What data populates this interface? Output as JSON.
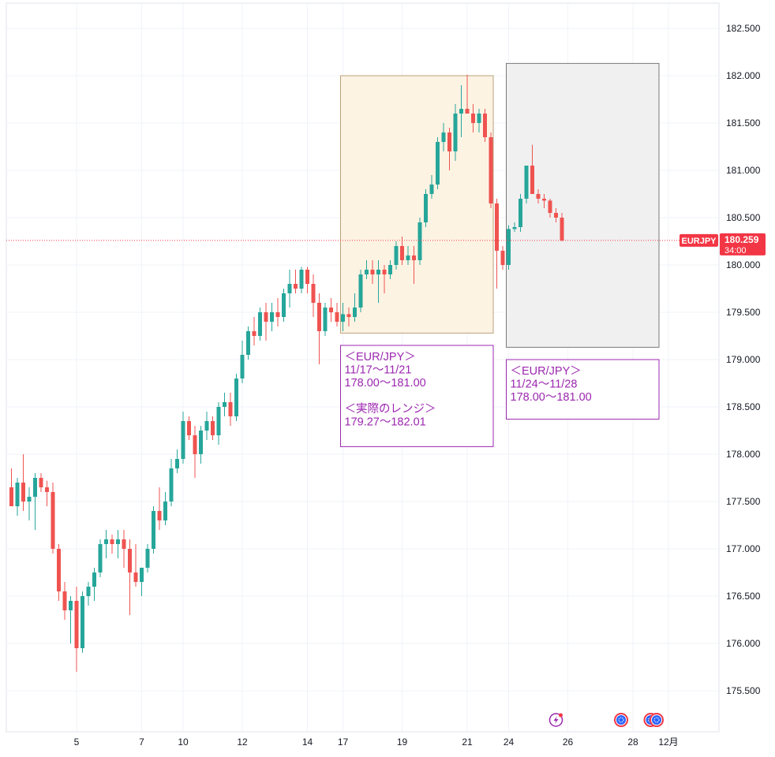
{
  "chart_data": {
    "type": "candlestick",
    "symbol": "EURJPY",
    "last_price": "180.259",
    "countdown": "34:00",
    "ylim": [
      175.2,
      182.7
    ],
    "y_ticks": [
      "175.500",
      "176.000",
      "176.500",
      "177.000",
      "177.500",
      "178.000",
      "178.500",
      "179.000",
      "179.500",
      "180.000",
      "180.500",
      "181.000",
      "181.500",
      "182.000",
      "182.500"
    ],
    "x_ticks": [
      {
        "label": "5",
        "index": 11
      },
      {
        "label": "7",
        "index": 22
      },
      {
        "label": "10",
        "index": 29
      },
      {
        "label": "12",
        "index": 39
      },
      {
        "label": "14",
        "index": 50
      },
      {
        "label": "17",
        "index": 56
      },
      {
        "label": "19",
        "index": 66
      },
      {
        "label": "21",
        "index": 77
      },
      {
        "label": "24",
        "index": 84
      },
      {
        "label": "26",
        "index": 94
      },
      {
        "label": "28",
        "index": 105
      },
      {
        "label": "12月",
        "index": 111
      }
    ],
    "candles": [
      [
        177.65,
        177.85,
        177.45,
        177.45
      ],
      [
        177.45,
        177.75,
        177.35,
        177.7
      ],
      [
        177.7,
        178.0,
        177.4,
        177.5
      ],
      [
        177.5,
        177.65,
        177.3,
        177.55
      ],
      [
        177.55,
        177.8,
        177.2,
        177.75
      ],
      [
        177.75,
        177.8,
        177.6,
        177.65
      ],
      [
        177.65,
        177.72,
        177.45,
        177.6
      ],
      [
        177.6,
        177.7,
        176.95,
        177.0
      ],
      [
        177.0,
        177.05,
        176.45,
        176.55
      ],
      [
        176.55,
        176.65,
        176.25,
        176.35
      ],
      [
        176.35,
        176.5,
        176.0,
        176.45
      ],
      [
        176.45,
        176.6,
        175.7,
        175.95
      ],
      [
        175.95,
        176.55,
        175.9,
        176.5
      ],
      [
        176.5,
        176.65,
        176.4,
        176.6
      ],
      [
        176.6,
        176.8,
        176.45,
        176.75
      ],
      [
        176.75,
        177.1,
        176.7,
        177.05
      ],
      [
        177.05,
        177.2,
        176.9,
        177.1
      ],
      [
        177.1,
        177.15,
        176.95,
        177.05
      ],
      [
        177.05,
        177.2,
        176.9,
        177.1
      ],
      [
        177.1,
        177.2,
        176.8,
        177.0
      ],
      [
        177.0,
        177.1,
        176.3,
        176.75
      ],
      [
        176.75,
        177.05,
        176.6,
        176.65
      ],
      [
        176.65,
        176.8,
        176.5,
        176.8
      ],
      [
        176.8,
        177.05,
        176.75,
        177.0
      ],
      [
        177.0,
        177.45,
        176.95,
        177.4
      ],
      [
        177.4,
        177.65,
        177.2,
        177.3
      ],
      [
        177.3,
        177.6,
        177.25,
        177.5
      ],
      [
        177.5,
        177.95,
        177.45,
        177.85
      ],
      [
        177.85,
        178.05,
        177.8,
        177.95
      ],
      [
        177.95,
        178.45,
        177.9,
        178.35
      ],
      [
        178.35,
        178.4,
        178.15,
        178.2
      ],
      [
        178.2,
        178.3,
        177.75,
        178.0
      ],
      [
        178.0,
        178.3,
        177.9,
        178.25
      ],
      [
        178.25,
        178.45,
        178.15,
        178.35
      ],
      [
        178.35,
        178.4,
        178.15,
        178.2
      ],
      [
        178.2,
        178.55,
        178.1,
        178.5
      ],
      [
        178.5,
        178.65,
        178.4,
        178.55
      ],
      [
        178.55,
        178.65,
        178.3,
        178.4
      ],
      [
        178.4,
        178.85,
        178.35,
        178.8
      ],
      [
        178.8,
        179.2,
        178.75,
        179.05
      ],
      [
        179.05,
        179.35,
        179.0,
        179.3
      ],
      [
        179.3,
        179.45,
        179.15,
        179.25
      ],
      [
        179.25,
        179.55,
        179.2,
        179.5
      ],
      [
        179.5,
        179.6,
        179.2,
        179.4
      ],
      [
        179.4,
        179.6,
        179.3,
        179.5
      ],
      [
        179.5,
        179.65,
        179.35,
        179.45
      ],
      [
        179.45,
        179.75,
        179.4,
        179.7
      ],
      [
        179.7,
        179.95,
        179.55,
        179.8
      ],
      [
        179.8,
        179.95,
        179.7,
        179.75
      ],
      [
        179.75,
        179.98,
        179.7,
        179.95
      ],
      [
        179.95,
        179.98,
        179.7,
        179.8
      ],
      [
        179.8,
        179.9,
        179.45,
        179.6
      ],
      [
        179.6,
        179.7,
        178.95,
        179.3
      ],
      [
        179.3,
        179.6,
        179.25,
        179.55
      ],
      [
        179.55,
        179.65,
        179.4,
        179.5
      ],
      [
        179.5,
        179.6,
        179.35,
        179.4
      ],
      [
        179.4,
        179.6,
        179.3,
        179.48
      ],
      [
        179.48,
        179.55,
        179.35,
        179.45
      ],
      [
        179.45,
        179.7,
        179.4,
        179.55
      ],
      [
        179.55,
        179.95,
        179.5,
        179.9
      ],
      [
        179.9,
        180.05,
        179.85,
        179.95
      ],
      [
        179.95,
        180.05,
        179.8,
        179.9
      ],
      [
        179.9,
        180.05,
        179.6,
        179.95
      ],
      [
        179.95,
        180.0,
        179.7,
        179.9
      ],
      [
        179.9,
        180.05,
        179.85,
        180.0
      ],
      [
        180.0,
        180.25,
        179.95,
        180.2
      ],
      [
        180.2,
        180.3,
        180.0,
        180.05
      ],
      [
        180.05,
        180.2,
        180.0,
        180.1
      ],
      [
        180.1,
        180.2,
        179.8,
        180.05
      ],
      [
        180.05,
        180.5,
        180.0,
        180.45
      ],
      [
        180.45,
        180.8,
        180.4,
        180.75
      ],
      [
        180.75,
        180.95,
        180.7,
        180.85
      ],
      [
        180.85,
        181.35,
        180.8,
        181.3
      ],
      [
        181.3,
        181.5,
        181.2,
        181.4
      ],
      [
        181.4,
        181.45,
        181.0,
        181.2
      ],
      [
        181.2,
        181.7,
        181.1,
        181.6
      ],
      [
        181.6,
        181.9,
        181.35,
        181.65
      ],
      [
        181.65,
        182.01,
        181.6,
        181.6
      ],
      [
        181.6,
        181.7,
        181.4,
        181.5
      ],
      [
        181.5,
        181.65,
        181.4,
        181.6
      ],
      [
        181.6,
        181.65,
        181.3,
        181.35
      ],
      [
        181.35,
        181.4,
        180.6,
        180.65
      ],
      [
        180.65,
        180.7,
        179.75,
        180.15
      ],
      [
        180.15,
        180.2,
        179.95,
        180.0
      ],
      [
        180.0,
        180.42,
        179.95,
        180.38
      ],
      [
        180.38,
        180.45,
        180.35,
        180.4
      ],
      [
        180.4,
        180.75,
        180.35,
        180.7
      ],
      [
        180.7,
        181.05,
        180.65,
        181.05
      ],
      [
        181.05,
        181.27,
        180.75,
        180.75
      ],
      [
        180.75,
        180.8,
        180.65,
        180.7
      ],
      [
        180.7,
        180.75,
        180.6,
        180.68
      ],
      [
        180.68,
        180.7,
        180.5,
        180.55
      ],
      [
        180.55,
        180.6,
        180.45,
        180.5
      ],
      [
        180.5,
        180.55,
        180.25,
        180.26
      ]
    ],
    "boxes": [
      {
        "start_index": 56,
        "end_index": 81,
        "top": 182.0,
        "bottom": 179.28,
        "fill": "#fdf3e3",
        "stroke": "#b8a17c"
      },
      {
        "start_index": 84,
        "end_index": 109,
        "top": 182.13,
        "bottom": 179.13,
        "fill": "#f0f0f0",
        "stroke": "#7a7a7a"
      }
    ],
    "annotations": [
      {
        "start_index": 56,
        "end_index": 81,
        "top": 179.15,
        "bottom": 178.08,
        "lines": [
          "＜EUR/JPY＞",
          "11/17〜11/21",
          "178.00〜181.00",
          "",
          "＜実際のレンジ＞",
          "179.27〜182.01"
        ]
      },
      {
        "start_index": 84,
        "end_index": 109,
        "top": 179.0,
        "bottom": 178.37,
        "lines": [
          "＜EUR/JPY＞",
          "11/24〜11/28",
          "178.00〜181.00"
        ]
      }
    ],
    "colors": {
      "up": "#26a69a",
      "down": "#ef5350",
      "grid": "#f0f3fa",
      "axis": "#e0e3eb",
      "annotation": "#9c27b0",
      "price_line": "#f23645"
    },
    "grid": true,
    "event_icons": [
      {
        "index": 92,
        "type": "lightning-icon"
      },
      {
        "index": 103,
        "type": "calendar-event-icon"
      },
      {
        "index": 108,
        "type": "calendar-event-icon"
      },
      {
        "index": 109,
        "type": "calendar-event-icon"
      }
    ]
  }
}
